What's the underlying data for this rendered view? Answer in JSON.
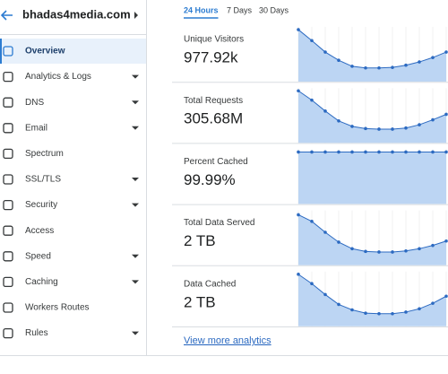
{
  "header": {
    "site": "bhadas4media.com"
  },
  "nav": [
    {
      "label": "Overview",
      "expandable": false,
      "selected": true
    },
    {
      "label": "Analytics & Logs",
      "expandable": true
    },
    {
      "label": "DNS",
      "expandable": true
    },
    {
      "label": "Email",
      "expandable": true
    },
    {
      "label": "Spectrum",
      "expandable": false
    },
    {
      "label": "SSL/TLS",
      "expandable": true
    },
    {
      "label": "Security",
      "expandable": true
    },
    {
      "label": "Access",
      "expandable": false
    },
    {
      "label": "Speed",
      "expandable": true
    },
    {
      "label": "Caching",
      "expandable": true
    },
    {
      "label": "Workers Routes",
      "expandable": false
    },
    {
      "label": "Rules",
      "expandable": true
    }
  ],
  "tabs": [
    "24 Hours",
    "7 Days",
    "30 Days"
  ],
  "active_tab": 0,
  "cards": [
    {
      "label": "Unique Visitors",
      "value": "977.92k",
      "sparkline": {
        "ylim": [
          0,
          100
        ],
        "values": [
          95,
          75,
          54,
          39,
          28,
          25,
          25,
          26,
          30,
          36,
          44,
          54
        ]
      }
    },
    {
      "label": "Total Requests",
      "value": "305.68M",
      "sparkline": {
        "ylim": [
          0,
          100
        ],
        "values": [
          95,
          78,
          58,
          40,
          30,
          26,
          25,
          25,
          27,
          33,
          42,
          52
        ]
      }
    },
    {
      "label": "Percent Cached",
      "value": "99.99%",
      "sparkline": {
        "ylim": [
          0,
          100
        ],
        "values": [
          95,
          95,
          95,
          95,
          95,
          95,
          95,
          95,
          95,
          95,
          95,
          95
        ]
      }
    },
    {
      "label": "Total Data Served",
      "value": "2 TB",
      "sparkline": {
        "ylim": [
          0,
          100
        ],
        "values": [
          92,
          80,
          60,
          42,
          30,
          25,
          24,
          24,
          26,
          30,
          36,
          44
        ]
      }
    },
    {
      "label": "Data Cached",
      "value": "2 TB",
      "sparkline": {
        "ylim": [
          0,
          100
        ],
        "values": [
          95,
          78,
          58,
          40,
          30,
          24,
          23,
          23,
          26,
          32,
          42,
          55
        ]
      }
    }
  ],
  "footer_link": "View more analytics"
}
